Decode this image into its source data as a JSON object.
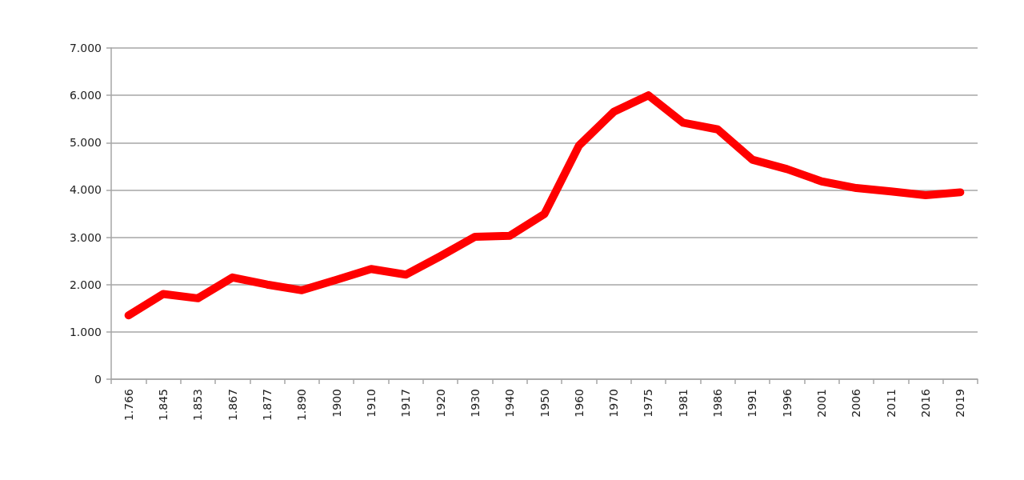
{
  "chart_data": {
    "type": "line",
    "categories": [
      "1.766",
      "1.845",
      "1.853",
      "1.867",
      "1.877",
      "1.890",
      "1900",
      "1910",
      "1917",
      "1920",
      "1930",
      "1940",
      "1950",
      "1960",
      "1970",
      "1975",
      "1981",
      "1986",
      "1991",
      "1996",
      "2001",
      "2006",
      "2011",
      "2016",
      "2019"
    ],
    "series": [
      {
        "color": "#ff0000",
        "values": [
          1350,
          1800,
          1710,
          2150,
          2000,
          1880,
          2100,
          2330,
          2210,
          2600,
          3010,
          3030,
          3490,
          4940,
          5650,
          6000,
          5420,
          5280,
          4640,
          4440,
          4180,
          4040,
          3970,
          3890,
          3950
        ]
      }
    ],
    "ylim": [
      0,
      7000
    ],
    "yticks": [
      0,
      {
        "value": 1000,
        "label": "1.000"
      },
      {
        "value": 2000,
        "label": "2.000"
      },
      {
        "value": 3000,
        "label": "3.000"
      },
      {
        "value": 4000,
        "label": "4.000"
      },
      {
        "value": 5000,
        "label": "5.000"
      },
      {
        "value": 6000,
        "label": "6.000"
      },
      {
        "value": 7000,
        "label": "7.000"
      }
    ],
    "grid": "y"
  }
}
